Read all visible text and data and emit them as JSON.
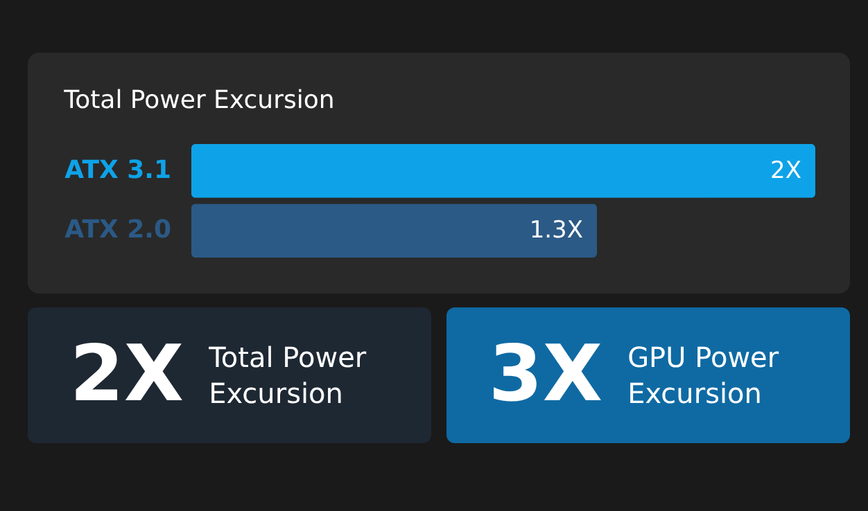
{
  "chart_data": [
    {
      "type": "bar",
      "orientation": "horizontal",
      "title": "Total Power Excursion",
      "categories": [
        "ATX 3.1",
        "ATX 2.0"
      ],
      "values": [
        2,
        1.3
      ],
      "colors": [
        "#0ea3e8",
        "#2b5a86"
      ],
      "value_labels": [
        "2X",
        "1.3X"
      ],
      "grid": false,
      "legend": false,
      "tick_labels": "y"
    },
    {
      "type": "other",
      "title": "2X",
      "subtitle": "Total Power Excursion"
    },
    {
      "type": "other",
      "title": "3X",
      "subtitle": "GPU Power Excursion"
    }
  ]
}
